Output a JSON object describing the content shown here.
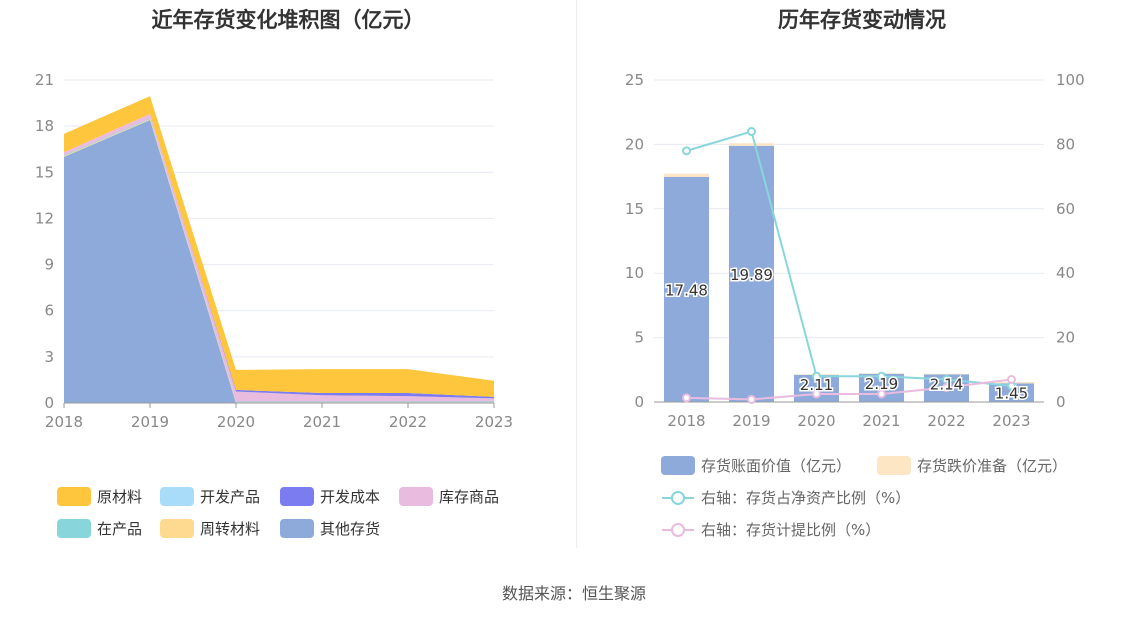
{
  "source": "数据来源：恒生聚源",
  "chart_data": [
    {
      "type": "area",
      "title": "近年存货变化堆积图（亿元）",
      "x": [
        "2018",
        "2019",
        "2020",
        "2021",
        "2022",
        "2023"
      ],
      "ylim": [
        0,
        21
      ],
      "yticks": [
        "0",
        "3",
        "6",
        "9",
        "12",
        "15",
        "18",
        "21"
      ],
      "stacked": true,
      "series": [
        {
          "name": "其他存货",
          "color": "#8eaadb",
          "values": [
            16.0,
            18.4,
            0.0,
            0.0,
            0.0,
            0.0
          ]
        },
        {
          "name": "周转材料",
          "color": "#fed990",
          "values": [
            0.05,
            0.05,
            0.05,
            0.05,
            0.05,
            0.05
          ]
        },
        {
          "name": "在产品",
          "color": "#88d6dc",
          "values": [
            0.05,
            0.05,
            0.05,
            0.05,
            0.05,
            0.05
          ]
        },
        {
          "name": "库存商品",
          "color": "#e8bbdf",
          "values": [
            0.2,
            0.3,
            0.65,
            0.4,
            0.35,
            0.2
          ]
        },
        {
          "name": "开发成本",
          "color": "#7b7cf0",
          "values": [
            0.0,
            0.0,
            0.1,
            0.15,
            0.2,
            0.1
          ]
        },
        {
          "name": "开发产品",
          "color": "#a8dcf8",
          "values": [
            0.0,
            0.0,
            0.0,
            0.0,
            0.0,
            0.0
          ]
        },
        {
          "name": "原材料",
          "color": "#fec63c",
          "values": [
            1.2,
            1.15,
            1.3,
            1.55,
            1.55,
            1.05
          ]
        }
      ],
      "legend": [
        "原材料",
        "开发产品",
        "开发成本",
        "库存商品",
        "在产品",
        "周转材料",
        "其他存货"
      ],
      "legend_position": "bottom",
      "grid": true
    },
    {
      "type": "bar",
      "title": "历年存货变动情况",
      "categories": [
        "2018",
        "2019",
        "2020",
        "2021",
        "2022",
        "2023"
      ],
      "ylim_left": [
        0,
        25
      ],
      "yticks_left": [
        "0",
        "5",
        "10",
        "15",
        "20",
        "25"
      ],
      "ylim_right": [
        0,
        100
      ],
      "yticks_right": [
        "0",
        "20",
        "40",
        "60",
        "80",
        "100"
      ],
      "series": [
        {
          "name": "存货账面价值（亿元）",
          "type": "bar",
          "axis": "left",
          "color": "#8eaadb",
          "values": [
            17.48,
            19.89,
            2.11,
            2.19,
            2.14,
            1.45
          ],
          "labels": [
            "17.48",
            "19.89",
            "2.11",
            "2.19",
            "2.14",
            "1.45"
          ]
        },
        {
          "name": "存货跌价准备（亿元）",
          "type": "bar",
          "axis": "left",
          "color": "#fde6c4",
          "values": [
            0.25,
            0.2,
            0.05,
            0.05,
            0.05,
            0.1
          ]
        },
        {
          "name": "右轴：存货占净资产比例（%）",
          "type": "line",
          "axis": "right",
          "color": "#88d6dc",
          "values": [
            78,
            84,
            8,
            8,
            7,
            5
          ]
        },
        {
          "name": "右轴：存货计提比例（%）",
          "type": "line",
          "axis": "right",
          "color": "#e8bbdf",
          "values": [
            1.3,
            0.8,
            2.5,
            2.5,
            4.5,
            7
          ]
        }
      ],
      "legend_position": "bottom",
      "grid": true
    }
  ]
}
